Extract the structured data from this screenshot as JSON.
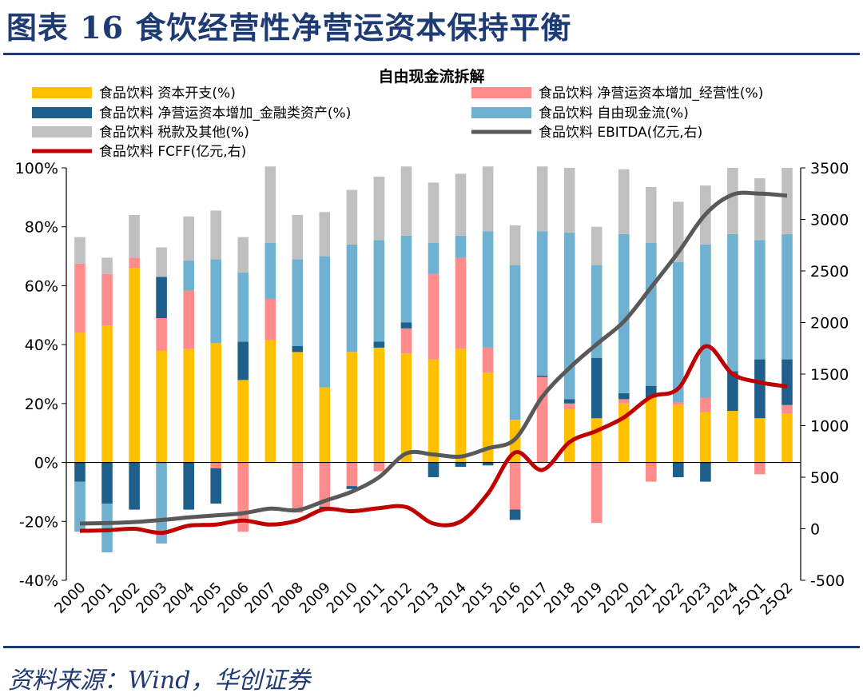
{
  "figure": {
    "title": "图表 16  食饮经营性净营运资本保持平衡",
    "source": "资料来源：Wind，华创证券"
  },
  "chart_data": {
    "type": "bar",
    "subtype": "stacked-bar-with-secondary-lines",
    "title": "自由现金流拆解",
    "categories": [
      "2000",
      "2001",
      "2002",
      "2003",
      "2004",
      "2005",
      "2006",
      "2007",
      "2008",
      "2009",
      "2010",
      "2011",
      "2012",
      "2013",
      "2014",
      "2015",
      "2016",
      "2017",
      "2018",
      "2019",
      "2020",
      "2021",
      "2022",
      "2023",
      "2024",
      "25Q1",
      "25Q2"
    ],
    "y_left": {
      "range": [
        -40,
        100
      ],
      "ticks": [
        -40,
        -20,
        0,
        20,
        40,
        60,
        80,
        100
      ],
      "tick_labels": [
        "-40%",
        "-20%",
        "0%",
        "20%",
        "40%",
        "60%",
        "80%",
        "100%"
      ]
    },
    "y_right": {
      "range": [
        -500,
        3500
      ],
      "ticks": [
        -500,
        0,
        500,
        1000,
        1500,
        2000,
        2500,
        3000,
        3500
      ],
      "tick_labels": [
        "-500",
        "0",
        "500",
        "1000",
        "1500",
        "2000",
        "2500",
        "3000",
        "3500"
      ]
    },
    "grid": false,
    "legend_position": "top",
    "series": [
      {
        "name": "食品饮料 资本开支(%)",
        "kind": "bar",
        "axis": "left",
        "color": "#ffc000",
        "values": [
          44,
          46.5,
          66,
          38,
          38.5,
          40.5,
          28,
          41.5,
          37.5,
          25.5,
          37.5,
          39,
          37,
          35,
          38.5,
          30.5,
          14.5,
          0,
          18,
          15,
          20,
          22,
          19.5,
          17,
          17.5,
          15,
          16.5
        ]
      },
      {
        "name": "食品饮料 净营运资本增加_经营性(%)",
        "kind": "bar",
        "axis": "left",
        "color": "#ff8c8c",
        "values": [
          23.5,
          17.5,
          3.5,
          11,
          20,
          -2,
          -23.5,
          14,
          -17,
          -15,
          -8,
          -3,
          8.5,
          29,
          31,
          8.5,
          -16,
          29,
          2,
          -20.5,
          1.5,
          -6.5,
          1,
          5,
          0,
          -4,
          3
        ]
      },
      {
        "name": "食品饮料 净营运资本增加_金融类资产(%)",
        "kind": "bar",
        "axis": "left",
        "color": "#1f5f8b",
        "values": [
          -6.5,
          -14,
          -16,
          14,
          -16,
          -12,
          13,
          0,
          2,
          -1,
          -1,
          2,
          2,
          -5,
          -1.5,
          -1,
          -3.5,
          0.5,
          1.5,
          20.5,
          2,
          4,
          -5,
          -6.5,
          13.5,
          20,
          15.5
        ]
      },
      {
        "name": "食品饮料 自由现金流(%)",
        "kind": "bar",
        "axis": "left",
        "color": "#70b0d0",
        "values": [
          -17,
          -16.5,
          0,
          -27.5,
          10,
          28.5,
          23.5,
          19,
          29.5,
          44.5,
          36.5,
          34.5,
          29.5,
          10.5,
          7.5,
          39.5,
          52.5,
          49,
          56.5,
          31.5,
          54,
          48.5,
          47.5,
          52,
          46.5,
          40.5,
          42.5
        ]
      },
      {
        "name": "食品饮料 税款及其他(%)",
        "kind": "bar",
        "axis": "left",
        "color": "#c0c0c0",
        "values": [
          9,
          5.5,
          14.5,
          10,
          15,
          16.5,
          12,
          26,
          15,
          15,
          18.5,
          21.5,
          23.5,
          20.5,
          21,
          22,
          13.5,
          22,
          22,
          13,
          22,
          19,
          20.5,
          20,
          22.5,
          21,
          22.5
        ]
      },
      {
        "name": "食品饮料 EBITDA(亿元,右)",
        "kind": "line",
        "axis": "right",
        "color": "#595959",
        "values": [
          50,
          55,
          65,
          85,
          110,
          130,
          150,
          195,
          180,
          270,
          360,
          500,
          730,
          720,
          700,
          780,
          870,
          1280,
          1560,
          1790,
          2010,
          2340,
          2680,
          3050,
          3240,
          3250,
          3230
        ]
      },
      {
        "name": "食品饮料 FCFF(亿元,右)",
        "kind": "line",
        "axis": "right",
        "color": "#c00000",
        "values": [
          -20,
          -15,
          0,
          -40,
          30,
          40,
          80,
          40,
          80,
          190,
          170,
          200,
          210,
          50,
          70,
          340,
          740,
          570,
          840,
          950,
          1080,
          1280,
          1360,
          1770,
          1500,
          1420,
          1380
        ]
      }
    ]
  }
}
